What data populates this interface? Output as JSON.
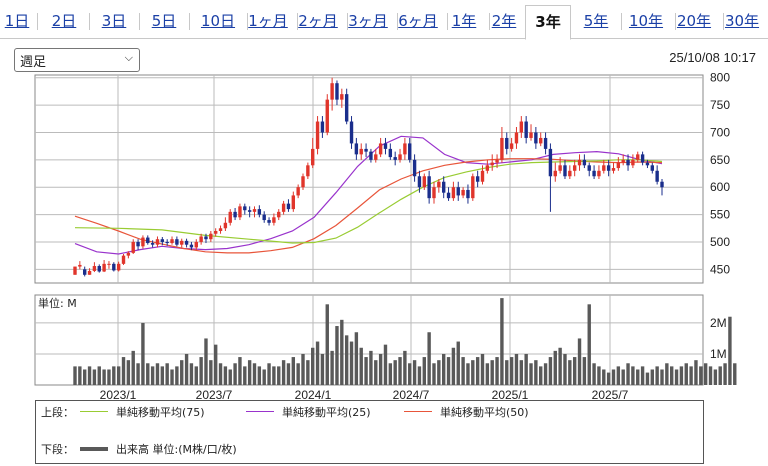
{
  "tabs": [
    {
      "label": "1日"
    },
    {
      "label": "2日"
    },
    {
      "label": "3日"
    },
    {
      "label": "5日"
    },
    {
      "label": "10日"
    },
    {
      "label": "1ヶ月"
    },
    {
      "label": "2ヶ月"
    },
    {
      "label": "3ヶ月"
    },
    {
      "label": "6ヶ月"
    },
    {
      "label": "1年"
    },
    {
      "label": "2年"
    },
    {
      "label": "3年",
      "active": true
    },
    {
      "label": "5年"
    },
    {
      "label": "10年"
    },
    {
      "label": "20年"
    },
    {
      "label": "30年"
    }
  ],
  "period_select": {
    "value": "週足"
  },
  "timestamp": "25/10/08 10:17",
  "volume_panel": {
    "unit_label": "単位: M"
  },
  "legend": {
    "upper_label": "上段：",
    "lower_label": "下段：",
    "ma75": "単純移動平均(75)",
    "ma25": "単純移動平均(25)",
    "ma50": "単純移動平均(50)",
    "volume": "出来高 単位:(M株/口/枚)"
  },
  "colors": {
    "up": "#e0352b",
    "down": "#1a2e8c",
    "ma25": "#9933cc",
    "ma50": "#e8553a",
    "ma75": "#99cc33",
    "volume": "#595959",
    "tab_link": "#1a3fa6"
  },
  "chart_data": [
    {
      "type": "candlestick",
      "timeframe": "weekly",
      "x_tick_labels": [
        "2023/1",
        "2023/7",
        "2024/1",
        "2024/7",
        "2025/1",
        "2025/7"
      ],
      "y_ticks": [
        450,
        500,
        550,
        600,
        650,
        700,
        750,
        800
      ],
      "ylim": [
        425,
        805
      ],
      "grid": true,
      "series": [
        {
          "name": "単純移動平均(25)",
          "color": "#9933cc",
          "points": [
            [
              0,
              497
            ],
            [
              5,
              482
            ],
            [
              10,
              478
            ],
            [
              15,
              486
            ],
            [
              20,
              492
            ],
            [
              25,
              488
            ],
            [
              30,
              486
            ],
            [
              35,
              488
            ],
            [
              40,
              495
            ],
            [
              45,
              506
            ],
            [
              50,
              520
            ],
            [
              55,
              545
            ],
            [
              60,
              590
            ],
            [
              65,
              638
            ],
            [
              70,
              675
            ],
            [
              75,
              693
            ],
            [
              80,
              690
            ],
            [
              85,
              660
            ],
            [
              90,
              645
            ],
            [
              95,
              642
            ],
            [
              100,
              646
            ],
            [
              105,
              650
            ],
            [
              110,
              660
            ],
            [
              115,
              663
            ],
            [
              120,
              665
            ],
            [
              125,
              661
            ],
            [
              130,
              650
            ],
            [
              135,
              643
            ]
          ]
        },
        {
          "name": "単純移動平均(50)",
          "color": "#e8553a",
          "points": [
            [
              0,
              547
            ],
            [
              5,
              534
            ],
            [
              10,
              520
            ],
            [
              15,
              505
            ],
            [
              20,
              496
            ],
            [
              25,
              488
            ],
            [
              30,
              482
            ],
            [
              35,
              480
            ],
            [
              40,
              480
            ],
            [
              45,
              484
            ],
            [
              50,
              490
            ],
            [
              55,
              506
            ],
            [
              60,
              530
            ],
            [
              65,
              562
            ],
            [
              70,
              595
            ],
            [
              75,
              615
            ],
            [
              80,
              630
            ],
            [
              85,
              640
            ],
            [
              90,
              646
            ],
            [
              95,
              650
            ],
            [
              100,
              652
            ],
            [
              105,
              652
            ],
            [
              110,
              651
            ],
            [
              115,
              648
            ],
            [
              120,
              646
            ],
            [
              125,
              645
            ],
            [
              130,
              646
            ],
            [
              135,
              645
            ]
          ]
        },
        {
          "name": "単純移動平均(75)",
          "color": "#99cc33",
          "points": [
            [
              0,
              526
            ],
            [
              10,
              525
            ],
            [
              20,
              522
            ],
            [
              30,
              512
            ],
            [
              40,
              505
            ],
            [
              50,
              498
            ],
            [
              55,
              499
            ],
            [
              60,
              507
            ],
            [
              65,
              527
            ],
            [
              70,
              553
            ],
            [
              75,
              578
            ],
            [
              80,
              600
            ],
            [
              85,
              618
            ],
            [
              90,
              628
            ],
            [
              95,
              636
            ],
            [
              100,
              642
            ],
            [
              105,
              645
            ],
            [
              110,
              646
            ],
            [
              115,
              647
            ],
            [
              120,
              648
            ],
            [
              125,
              650
            ],
            [
              130,
              650
            ],
            [
              135,
              647
            ]
          ]
        }
      ],
      "candles": [
        [
          440,
          455,
          440,
          455
        ],
        [
          455,
          458,
          450,
          465
        ],
        [
          450,
          440,
          437,
          455
        ],
        [
          440,
          447,
          440,
          452
        ],
        [
          447,
          456,
          445,
          463
        ],
        [
          456,
          446,
          444,
          459
        ],
        [
          446,
          460,
          445,
          467
        ],
        [
          460,
          460,
          451,
          465
        ],
        [
          460,
          448,
          446,
          463
        ],
        [
          448,
          460,
          446,
          464
        ],
        [
          460,
          475,
          458,
          478
        ],
        [
          475,
          480,
          470,
          483
        ],
        [
          480,
          500,
          478,
          505
        ],
        [
          500,
          492,
          485,
          505
        ],
        [
          492,
          508,
          488,
          512
        ],
        [
          508,
          498,
          495,
          512
        ],
        [
          498,
          495,
          490,
          503
        ],
        [
          495,
          505,
          490,
          510
        ],
        [
          505,
          500,
          494,
          509
        ],
        [
          500,
          498,
          493,
          505
        ],
        [
          498,
          505,
          495,
          510
        ],
        [
          505,
          495,
          492,
          510
        ],
        [
          495,
          502,
          490,
          506
        ],
        [
          502,
          495,
          490,
          506
        ],
        [
          495,
          490,
          485,
          500
        ],
        [
          490,
          500,
          485,
          505
        ],
        [
          500,
          510,
          495,
          515
        ],
        [
          510,
          505,
          498,
          515
        ],
        [
          505,
          515,
          500,
          520
        ],
        [
          515,
          520,
          510,
          525
        ],
        [
          520,
          525,
          515,
          530
        ],
        [
          525,
          535,
          520,
          545
        ],
        [
          535,
          555,
          530,
          560
        ],
        [
          555,
          545,
          540,
          562
        ],
        [
          545,
          565,
          540,
          570
        ],
        [
          565,
          558,
          550,
          570
        ],
        [
          558,
          555,
          545,
          565
        ],
        [
          555,
          560,
          545,
          565
        ],
        [
          560,
          550,
          545,
          567
        ],
        [
          550,
          540,
          535,
          556
        ],
        [
          540,
          535,
          530,
          545
        ],
        [
          535,
          545,
          530,
          552
        ],
        [
          545,
          555,
          540,
          560
        ],
        [
          555,
          570,
          550,
          575
        ],
        [
          570,
          560,
          555,
          578
        ],
        [
          560,
          585,
          555,
          592
        ],
        [
          585,
          600,
          580,
          605
        ],
        [
          600,
          620,
          595,
          625
        ],
        [
          620,
          640,
          615,
          645
        ],
        [
          640,
          670,
          635,
          690
        ],
        [
          670,
          720,
          660,
          730
        ],
        [
          720,
          700,
          690,
          730
        ],
        [
          700,
          760,
          695,
          770
        ],
        [
          760,
          790,
          740,
          800
        ],
        [
          790,
          760,
          750,
          795
        ],
        [
          760,
          770,
          745,
          780
        ],
        [
          770,
          720,
          715,
          780
        ],
        [
          720,
          680,
          670,
          730
        ],
        [
          680,
          660,
          650,
          690
        ],
        [
          660,
          670,
          650,
          680
        ],
        [
          670,
          665,
          655,
          680
        ],
        [
          665,
          650,
          645,
          670
        ],
        [
          650,
          660,
          645,
          670
        ],
        [
          660,
          680,
          655,
          690
        ],
        [
          680,
          670,
          660,
          690
        ],
        [
          670,
          655,
          650,
          680
        ],
        [
          655,
          650,
          640,
          665
        ],
        [
          650,
          660,
          645,
          670
        ],
        [
          660,
          680,
          650,
          690
        ],
        [
          680,
          650,
          645,
          690
        ],
        [
          650,
          620,
          610,
          660
        ],
        [
          620,
          600,
          590,
          630
        ],
        [
          600,
          620,
          595,
          625
        ],
        [
          620,
          580,
          570,
          630
        ],
        [
          580,
          600,
          570,
          610
        ],
        [
          600,
          610,
          590,
          615
        ],
        [
          610,
          590,
          580,
          620
        ],
        [
          590,
          580,
          575,
          600
        ],
        [
          580,
          600,
          575,
          610
        ],
        [
          600,
          585,
          575,
          610
        ],
        [
          585,
          595,
          580,
          600
        ],
        [
          595,
          580,
          570,
          605
        ],
        [
          580,
          620,
          575,
          625
        ],
        [
          620,
          610,
          600,
          630
        ],
        [
          610,
          630,
          605,
          640
        ],
        [
          630,
          640,
          625,
          650
        ],
        [
          640,
          645,
          630,
          660
        ],
        [
          645,
          650,
          635,
          660
        ],
        [
          650,
          690,
          645,
          710
        ],
        [
          690,
          670,
          660,
          700
        ],
        [
          670,
          680,
          665,
          690
        ],
        [
          680,
          700,
          670,
          710
        ],
        [
          700,
          720,
          690,
          730
        ],
        [
          720,
          690,
          680,
          730
        ],
        [
          690,
          700,
          685,
          715
        ],
        [
          700,
          680,
          670,
          710
        ],
        [
          680,
          690,
          675,
          700
        ],
        [
          690,
          670,
          660,
          700
        ],
        [
          670,
          620,
          555,
          680
        ],
        [
          620,
          630,
          610,
          645
        ],
        [
          630,
          640,
          625,
          655
        ],
        [
          640,
          620,
          615,
          650
        ],
        [
          620,
          630,
          615,
          640
        ],
        [
          630,
          640,
          620,
          650
        ],
        [
          640,
          650,
          630,
          660
        ],
        [
          650,
          640,
          635,
          660
        ],
        [
          640,
          630,
          620,
          645
        ],
        [
          630,
          620,
          615,
          640
        ],
        [
          620,
          630,
          615,
          640
        ],
        [
          630,
          640,
          625,
          650
        ],
        [
          640,
          630,
          620,
          650
        ],
        [
          630,
          635,
          625,
          645
        ],
        [
          635,
          645,
          630,
          655
        ],
        [
          645,
          650,
          640,
          660
        ],
        [
          650,
          640,
          630,
          660
        ],
        [
          640,
          650,
          635,
          660
        ],
        [
          650,
          660,
          645,
          665
        ],
        [
          660,
          645,
          640,
          665
        ],
        [
          645,
          640,
          635,
          650
        ],
        [
          640,
          630,
          625,
          645
        ],
        [
          630,
          610,
          605,
          640
        ],
        [
          610,
          600,
          585,
          615
        ]
      ],
      "volume": [
        0.6,
        0.6,
        0.5,
        0.6,
        0.5,
        0.6,
        0.5,
        0.5,
        0.6,
        0.6,
        0.9,
        0.8,
        1.1,
        0.7,
        2.0,
        0.7,
        0.6,
        0.7,
        0.6,
        0.7,
        0.5,
        0.6,
        0.8,
        1.0,
        0.7,
        0.6,
        0.9,
        1.5,
        0.8,
        1.3,
        0.7,
        0.6,
        0.5,
        0.7,
        0.9,
        0.6,
        0.8,
        0.7,
        0.6,
        0.5,
        0.7,
        0.6,
        0.6,
        0.8,
        0.7,
        0.9,
        0.7,
        1.0,
        0.8,
        1.2,
        1.4,
        1.0,
        2.6,
        1.1,
        1.9,
        2.1,
        1.6,
        1.4,
        1.7,
        1.2,
        0.9,
        1.1,
        0.8,
        1.0,
        1.3,
        0.7,
        0.8,
        0.9,
        1.1,
        0.7,
        0.8,
        0.6,
        0.9,
        1.7,
        0.7,
        0.8,
        1.0,
        0.9,
        1.2,
        1.4,
        0.9,
        0.7,
        0.8,
        0.9,
        1.0,
        0.7,
        0.8,
        0.9,
        2.8,
        0.8,
        0.9,
        1.0,
        0.8,
        1.0,
        0.7,
        0.8,
        0.6,
        0.7,
        0.9,
        1.1,
        1.2,
        1.0,
        0.8,
        0.9,
        1.5,
        0.9,
        2.6,
        0.7,
        0.6,
        0.5,
        0.4,
        0.5,
        0.6,
        0.5,
        0.7,
        0.6,
        0.5,
        0.6,
        0.4,
        0.5,
        0.6,
        0.5,
        0.7,
        0.6,
        0.5,
        0.6,
        0.7,
        0.6,
        0.8,
        0.6,
        0.7,
        0.6,
        0.5,
        0.6,
        0.7,
        2.2,
        0.7
      ],
      "volume_ticks": [
        {
          "label": "1M",
          "value": 1
        },
        {
          "label": "2M",
          "value": 2
        }
      ],
      "volume_ylim": [
        0,
        2.9
      ]
    }
  ]
}
